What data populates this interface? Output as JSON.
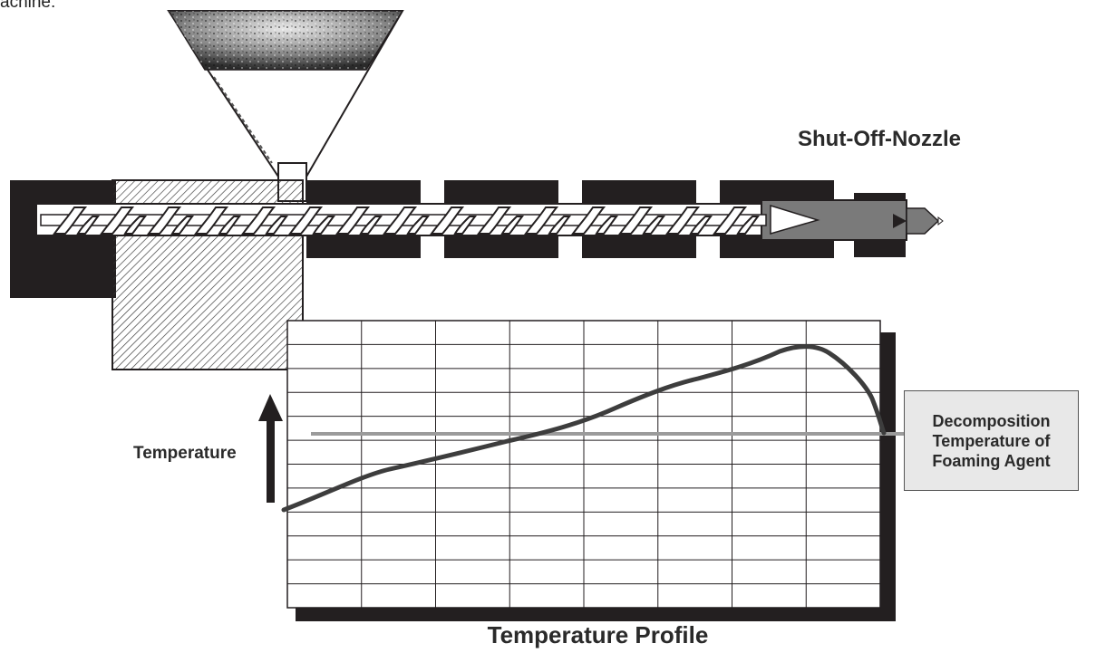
{
  "caption": "achine:",
  "labels": {
    "nozzle": "Shut-Off-Nozzle",
    "temperature": "Temperature",
    "decomposition": [
      "Decomposition",
      "Temperature of",
      "Foaming Agent"
    ],
    "profile_title": "Temperature Profile"
  },
  "colors": {
    "barrel_dark": "#231f20",
    "curve": "#3d3d3d",
    "threshold_line": "#9b9b9b",
    "nozzle_grey": "#7a7a7a",
    "label_box": "#e8e8e8"
  },
  "grid": {
    "rows": 12,
    "columns": 8
  }
}
